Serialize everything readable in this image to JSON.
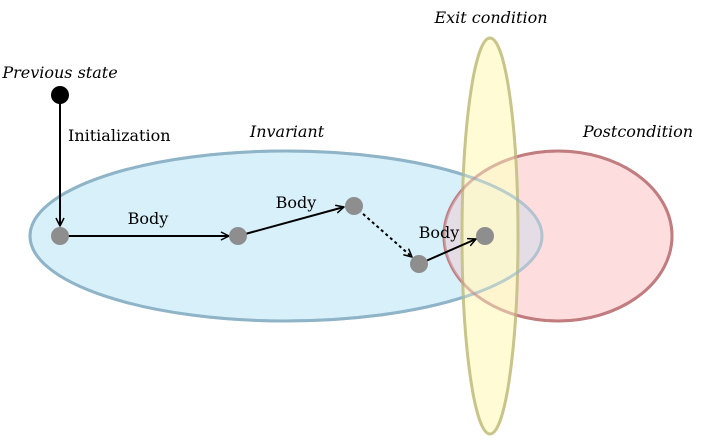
{
  "labels": {
    "previous_state": "Previous state",
    "initialization": "Initialization",
    "invariant": "Invariant",
    "exit_condition": "Exit condition",
    "postcondition": "Postcondition",
    "body_1": "Body",
    "body_2": "Body",
    "body_3": "Body"
  },
  "colors": {
    "invariant_fill": "#d8f0fa",
    "invariant_stroke": "#8fb4c8",
    "postcondition_fill": "#fdd8d8",
    "postcondition_stroke": "#c07c7e",
    "exit_fill": "#fefacc",
    "exit_stroke": "#c9c48a",
    "state_node": "#8e8e8e",
    "start_node": "#000000",
    "arrow": "#000000"
  }
}
